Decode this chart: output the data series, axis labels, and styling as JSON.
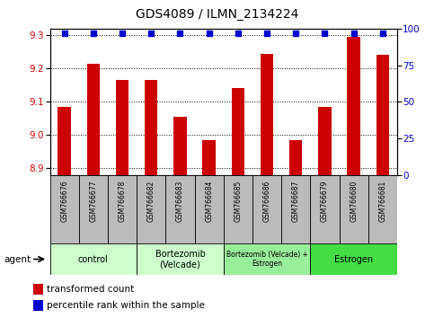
{
  "title": "GDS4089 / ILMN_2134224",
  "samples": [
    "GSM766676",
    "GSM766677",
    "GSM766678",
    "GSM766682",
    "GSM766683",
    "GSM766684",
    "GSM766685",
    "GSM766686",
    "GSM766687",
    "GSM766679",
    "GSM766680",
    "GSM766681"
  ],
  "bar_values": [
    9.085,
    9.215,
    9.165,
    9.165,
    9.055,
    8.985,
    9.14,
    9.245,
    8.985,
    9.085,
    9.295,
    9.24
  ],
  "percentile_values": [
    97,
    97,
    97,
    97,
    97,
    97,
    97,
    97,
    97,
    97,
    97,
    97
  ],
  "bar_color": "#cc0000",
  "percentile_color": "#0000cc",
  "ylim_left": [
    8.88,
    9.32
  ],
  "ylim_right": [
    0,
    100
  ],
  "yticks_left": [
    8.9,
    9.0,
    9.1,
    9.2,
    9.3
  ],
  "yticks_right": [
    0,
    25,
    50,
    75,
    100
  ],
  "group_ranges": [
    {
      "start": 0,
      "end": 2,
      "label": "control",
      "color": "#ccffcc"
    },
    {
      "start": 3,
      "end": 5,
      "label": "Bortezomib\n(Velcade)",
      "color": "#ccffcc"
    },
    {
      "start": 6,
      "end": 8,
      "label": "Bortezomib (Velcade) +\nEstrogen",
      "color": "#99ee99"
    },
    {
      "start": 9,
      "end": 11,
      "label": "Estrogen",
      "color": "#44dd44"
    }
  ],
  "agent_label": "agent",
  "legend_bar_label": "transformed count",
  "legend_percentile_label": "percentile rank within the sample",
  "grid_color": "#000000",
  "tick_area_color": "#bbbbbb",
  "title_fontsize": 10,
  "axis_fontsize": 7.5,
  "sample_fontsize": 5.5,
  "group_fontsize": 7,
  "group_fontsize_small": 5.5,
  "legend_fontsize": 7.5,
  "bar_width": 0.45
}
